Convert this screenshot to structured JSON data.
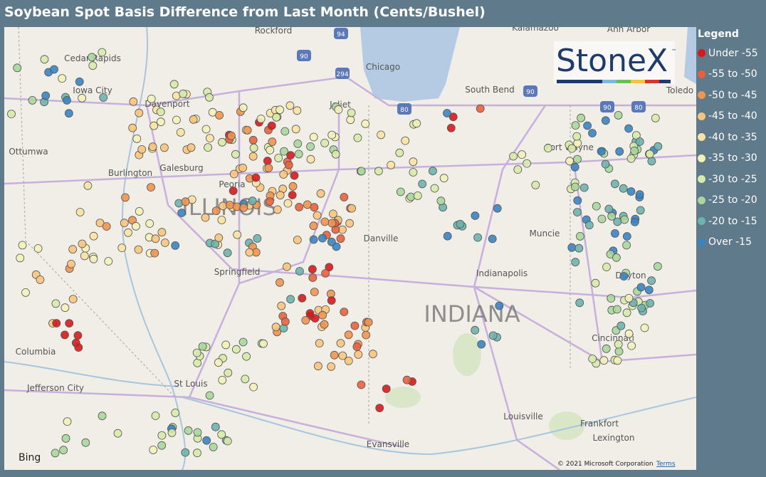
{
  "header": {
    "title": "Soybean Spot Basis Difference from Last Month (Cents/Bushel)"
  },
  "legend": {
    "title": "Legend",
    "items": [
      {
        "label": "Under -55",
        "color": "#d7191c"
      },
      {
        "label": "-55 to -50",
        "color": "#e9603e"
      },
      {
        "label": "-50 to -45",
        "color": "#f0944f"
      },
      {
        "label": "-45 to -40",
        "color": "#f8c47c"
      },
      {
        "label": "-40 to -35",
        "color": "#fbe2a2"
      },
      {
        "label": "-35 to -30",
        "color": "#f3f1b9"
      },
      {
        "label": "-30 to -25",
        "color": "#d6eaa9"
      },
      {
        "label": "-25 to -20",
        "color": "#a8d69b"
      },
      {
        "label": "-20 to -15",
        "color": "#6db3ae"
      },
      {
        "label": "Over -15",
        "color": "#3a84c3"
      }
    ]
  },
  "map": {
    "cities": [
      "Rockford",
      "Kalamazoo",
      "Ann Arbor",
      "Cedar Rapids",
      "Chicago",
      "Iowa City",
      "South Bend",
      "Toledo",
      "Davenport",
      "Joliet",
      "Ottumwa",
      "Fort Wayne",
      "Burlington",
      "Galesburg",
      "Peoria",
      "Muncie",
      "Danville",
      "Springfield",
      "Indianapolis",
      "Dayton",
      "Cincinnati",
      "Columbia",
      "Jefferson City",
      "St Louis",
      "Louisville",
      "Frankfort",
      "Evansville",
      "Lexington"
    ],
    "states": [
      "ILLINOIS",
      "INDIANA"
    ],
    "highways": [
      "94",
      "90",
      "294",
      "90",
      "80",
      "90",
      "80"
    ]
  },
  "logo": {
    "text": "StoneX",
    "tm": "™"
  },
  "attribution": {
    "bing": "Bing",
    "copyright": "© 2021 Microsoft Corporation",
    "terms": "Terms"
  }
}
